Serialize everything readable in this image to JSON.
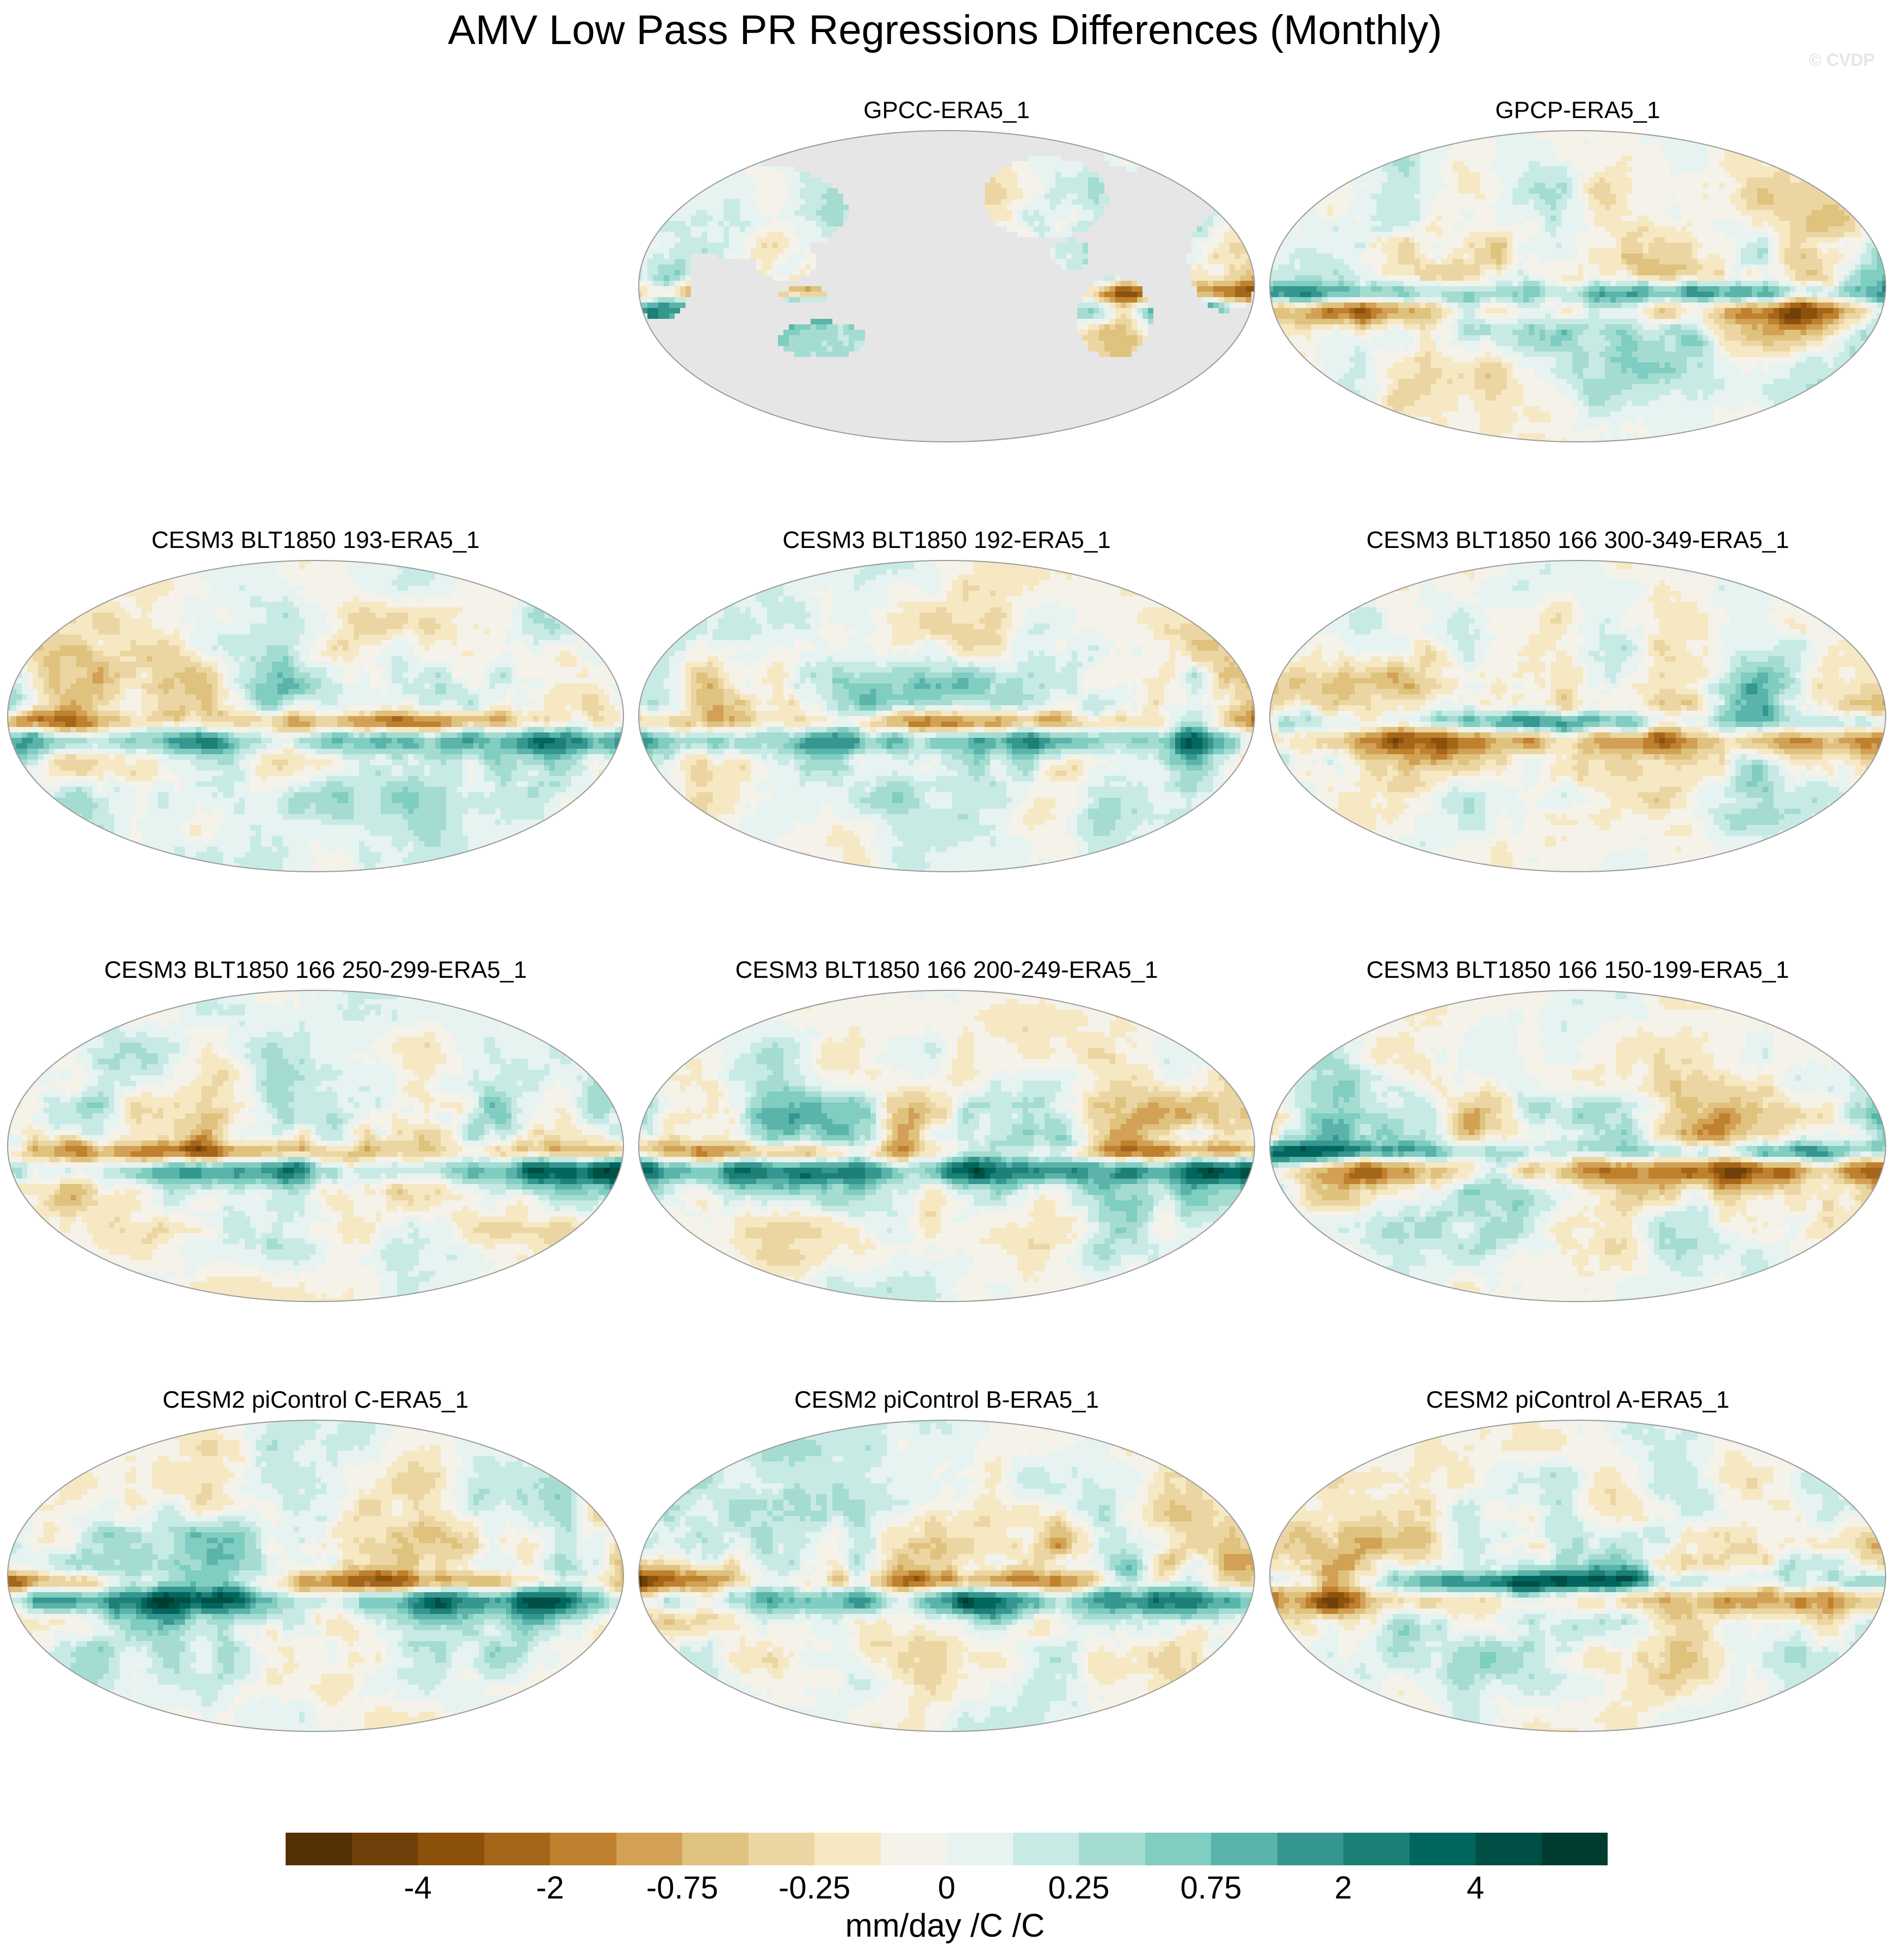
{
  "figure": {
    "title": "AMV Low Pass PR Regressions Differences (Monthly)",
    "watermark": "© CVDP"
  },
  "chart_data": {
    "type": "heatmap",
    "projection": "Robinson",
    "title": "AMV Low Pass PR Regressions Differences (Monthly)",
    "units": "mm/day /C /C",
    "panels": [
      {
        "label": "GPCC-ERA5_1",
        "coverage": "land only",
        "missing_color": "#e6e6e6"
      },
      {
        "label": "GPCP-ERA5_1",
        "coverage": "global"
      },
      {
        "label": "CESM3 BLT1850 193-ERA5_1",
        "coverage": "global"
      },
      {
        "label": "CESM3 BLT1850 192-ERA5_1",
        "coverage": "global"
      },
      {
        "label": "CESM3 BLT1850 166 300-349-ERA5_1",
        "coverage": "global"
      },
      {
        "label": "CESM3 BLT1850 166 250-299-ERA5_1",
        "coverage": "global"
      },
      {
        "label": "CESM3 BLT1850 166 200-249-ERA5_1",
        "coverage": "global"
      },
      {
        "label": "CESM3 BLT1850 166 150-199-ERA5_1",
        "coverage": "global"
      },
      {
        "label": "CESM2 piControl C-ERA5_1",
        "coverage": "global"
      },
      {
        "label": "CESM2 piControl B-ERA5_1",
        "coverage": "global"
      },
      {
        "label": "CESM2 piControl A-ERA5_1",
        "coverage": "global"
      }
    ],
    "colorbar": {
      "tick_labels": [
        "-4",
        "-2",
        "-0.75",
        "-0.25",
        "0",
        "0.25",
        "0.75",
        "2",
        "4"
      ],
      "colors": [
        "#543005",
        "#70400a",
        "#8c510a",
        "#a6661a",
        "#bf812d",
        "#d2a155",
        "#dfc27d",
        "#ebd6a3",
        "#f6e8c3",
        "#f5f2ea",
        "#e6f3f1",
        "#c7eae5",
        "#a5dcd2",
        "#80cdc1",
        "#5ab4a9",
        "#35978f",
        "#1c8077",
        "#01665e",
        "#004f45",
        "#003c30"
      ]
    }
  }
}
